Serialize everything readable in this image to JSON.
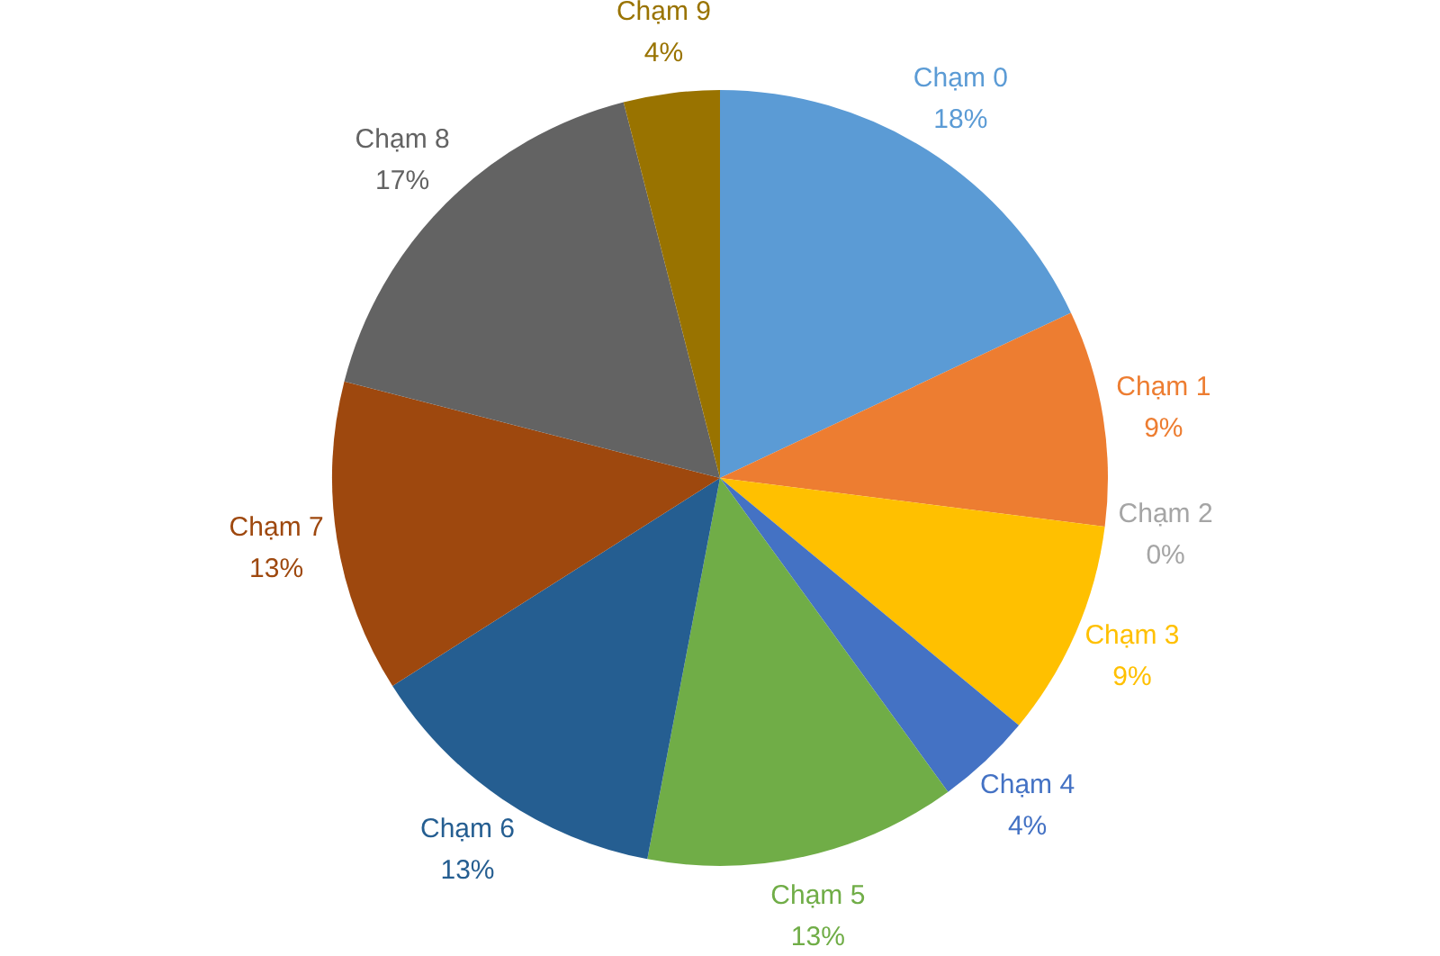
{
  "chart_data": {
    "type": "pie",
    "categories": [
      "Chạm 0",
      "Chạm 1",
      "Chạm 2",
      "Chạm 3",
      "Chạm 4",
      "Chạm 5",
      "Chạm 6",
      "Chạm 7",
      "Chạm 8",
      "Chạm 9"
    ],
    "values": [
      18,
      9,
      0,
      9,
      4,
      13,
      13,
      13,
      17,
      4
    ],
    "colors": [
      "#5b9bd5",
      "#ed7d31",
      "#a5a5a5",
      "#ffc000",
      "#4472c4",
      "#70ad47",
      "#255e91",
      "#9e480e",
      "#636363",
      "#997300"
    ],
    "value_labels": [
      "18%",
      "9%",
      "0%",
      "9%",
      "4%",
      "13%",
      "13%",
      "13%",
      "17%",
      "4%"
    ],
    "legend": false
  }
}
